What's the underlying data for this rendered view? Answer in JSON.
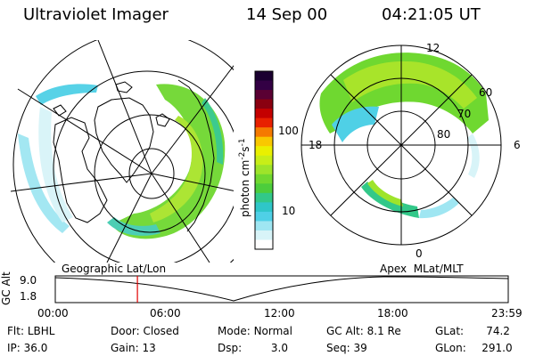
{
  "header": {
    "title": "Ultraviolet Imager",
    "date": "14 Sep 00",
    "time": "04:21:05 UT"
  },
  "colorbar": {
    "unit_label": "photon cm",
    "unit_exp1": "-2",
    "unit_s": "s",
    "unit_exp2": "-1",
    "ticks": [
      "100",
      "10"
    ],
    "colors_top_to_bottom": [
      "#1a0030",
      "#330044",
      "#5a0033",
      "#8a0010",
      "#c40000",
      "#e82000",
      "#f57a00",
      "#f9c800",
      "#eaf000",
      "#c8ee18",
      "#9ee42a",
      "#70d830",
      "#4ccd3c",
      "#32c889",
      "#2fc6c8",
      "#4fd0e6",
      "#9fe6f2",
      "#d8f4f8",
      "#ffffff"
    ]
  },
  "left_map": {
    "caption": "Geographic Lat/Lon"
  },
  "right_map": {
    "caption": "Apex  MLat/MLT",
    "mlt_labels": [
      "12",
      "18",
      "6",
      "0"
    ],
    "lat_labels": [
      "60",
      "70",
      "80"
    ]
  },
  "orbit": {
    "y_label": "GC Alt",
    "y_values": [
      "9.0",
      "1.8"
    ],
    "x_ticks": [
      "00:00",
      "06:00",
      "12:00",
      "18:00",
      "23:59"
    ],
    "marker_time": "04:21"
  },
  "info": {
    "flt_label": "Flt:",
    "flt_value": "LBHL",
    "door_label": "Door:",
    "door_value": "Closed",
    "mode_label": "Mode:",
    "mode_value": "Normal",
    "gcalt_label": "GC Alt:",
    "gcalt_value": "8.1 Re",
    "glat_label": "GLat:",
    "glat_value": "74.2",
    "ip_label": "IP:",
    "ip_value": "36.0",
    "gain_label": "Gain:",
    "gain_value": "13",
    "dsp_label": "Dsp:",
    "dsp_value": "3.0",
    "seq_label": "Seq:",
    "seq_value": "39",
    "glon_label": "GLon:",
    "glon_value": "291.0"
  }
}
